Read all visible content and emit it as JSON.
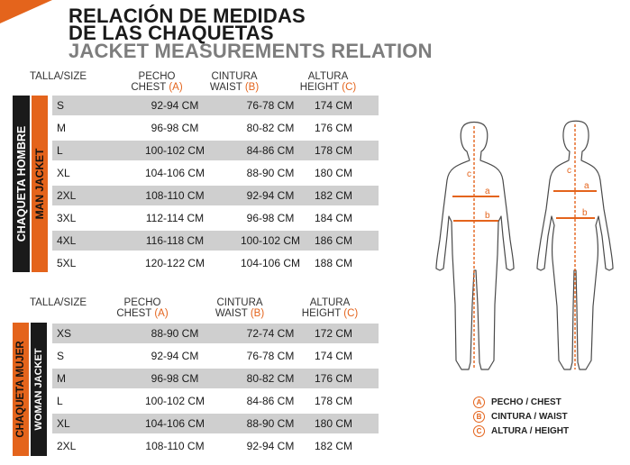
{
  "title": {
    "line1": "RELACIÓN DE MEDIDAS",
    "line2": "DE LAS CHAQUETAS",
    "line3": "JACKET MEASUREMENTS RELATION"
  },
  "accent": "#e4641c",
  "dark": "#1a1a1a",
  "shade": "#cfcfcf",
  "headers": {
    "size": "TALLA/SIZE",
    "chest_es": "PECHO",
    "chest_en": "CHEST",
    "chest_letter": "(A)",
    "waist_es": "CINTURA",
    "waist_en": "WAIST",
    "waist_letter": "(B)",
    "height_es": "ALTURA",
    "height_en": "HEIGHT",
    "height_letter": "(C)"
  },
  "men": {
    "label_es": "CHAQUETA HOMBRE",
    "label_en": "MAN JACKET",
    "rows": [
      [
        "S",
        "92-94 CM",
        "76-78 CM",
        "174 CM"
      ],
      [
        "M",
        "96-98 CM",
        "80-82 CM",
        "176 CM"
      ],
      [
        "L",
        "100-102 CM",
        "84-86 CM",
        "178 CM"
      ],
      [
        "XL",
        "104-106 CM",
        "88-90 CM",
        "180 CM"
      ],
      [
        "2XL",
        "108-110 CM",
        "92-94 CM",
        "182 CM"
      ],
      [
        "3XL",
        "112-114 CM",
        "96-98 CM",
        "184 CM"
      ],
      [
        "4XL",
        "116-118 CM",
        "100-102 CM",
        "186 CM"
      ],
      [
        "5XL",
        "120-122 CM",
        "104-106 CM",
        "188 CM"
      ]
    ]
  },
  "women": {
    "label_es": "CHAQUETA MUJER",
    "label_en": "WOMAN JACKET",
    "rows": [
      [
        "XS",
        "88-90 CM",
        "72-74 CM",
        "172 CM"
      ],
      [
        "S",
        "92-94 CM",
        "76-78 CM",
        "174 CM"
      ],
      [
        "M",
        "96-98 CM",
        "80-82 CM",
        "176 CM"
      ],
      [
        "L",
        "100-102 CM",
        "84-86 CM",
        "178 CM"
      ],
      [
        "XL",
        "104-106 CM",
        "88-90 CM",
        "180 CM"
      ],
      [
        "2XL",
        "108-110 CM",
        "92-94 CM",
        "182 CM"
      ]
    ]
  },
  "figure_marks": {
    "a": "a",
    "b": "b",
    "c": "c"
  },
  "legend": [
    {
      "letter": "A",
      "text": "PECHO / CHEST"
    },
    {
      "letter": "B",
      "text": "CINTURA / WAIST"
    },
    {
      "letter": "C",
      "text": "ALTURA / HEIGHT"
    }
  ]
}
